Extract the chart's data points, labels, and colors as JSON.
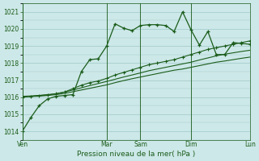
{
  "bg_color": "#cde8e8",
  "grid_color": "#9ec8c8",
  "line_color": "#1a5c1a",
  "xlabel": "Pression niveau de la mer( hPa )",
  "ylim": [
    1013.5,
    1021.5
  ],
  "yticks": [
    1014,
    1015,
    1016,
    1017,
    1018,
    1019,
    1020,
    1021
  ],
  "day_labels": [
    "Ven",
    "",
    "Mar",
    "Sam",
    "",
    "Dim",
    "",
    "Lun"
  ],
  "day_vlines": [
    0,
    10,
    14,
    20,
    27
  ],
  "day_vline_labels": [
    "Ven",
    "Mar",
    "Sam",
    "Dim",
    "Lun"
  ],
  "n_points": 28,
  "series1": [
    1014.0,
    1014.8,
    1015.5,
    1015.9,
    1016.05,
    1016.1,
    1016.15,
    1017.5,
    1018.2,
    1018.25,
    1019.0,
    1020.3,
    1020.05,
    1019.9,
    1020.2,
    1020.25,
    1020.25,
    1020.2,
    1019.85,
    1021.0,
    1019.95,
    1019.05,
    1019.85,
    1018.5,
    1018.5,
    1019.2,
    1019.15,
    1019.1
  ],
  "series2": [
    1016.0,
    1016.05,
    1016.1,
    1016.15,
    1016.2,
    1016.3,
    1016.5,
    1016.7,
    1016.85,
    1016.95,
    1017.1,
    1017.3,
    1017.45,
    1017.6,
    1017.75,
    1017.9,
    1018.0,
    1018.1,
    1018.2,
    1018.35,
    1018.5,
    1018.65,
    1018.8,
    1018.9,
    1019.0,
    1019.1,
    1019.2,
    1019.3
  ],
  "series3": [
    1016.05,
    1016.07,
    1016.1,
    1016.13,
    1016.2,
    1016.3,
    1016.42,
    1016.55,
    1016.68,
    1016.8,
    1016.92,
    1017.05,
    1017.18,
    1017.3,
    1017.42,
    1017.55,
    1017.65,
    1017.75,
    1017.85,
    1017.95,
    1018.05,
    1018.18,
    1018.3,
    1018.42,
    1018.52,
    1018.6,
    1018.68,
    1018.75
  ],
  "series4": [
    1016.02,
    1016.04,
    1016.06,
    1016.1,
    1016.15,
    1016.22,
    1016.32,
    1016.42,
    1016.52,
    1016.62,
    1016.72,
    1016.85,
    1016.97,
    1017.08,
    1017.18,
    1017.28,
    1017.38,
    1017.48,
    1017.58,
    1017.65,
    1017.75,
    1017.85,
    1017.95,
    1018.05,
    1018.12,
    1018.2,
    1018.28,
    1018.35
  ]
}
